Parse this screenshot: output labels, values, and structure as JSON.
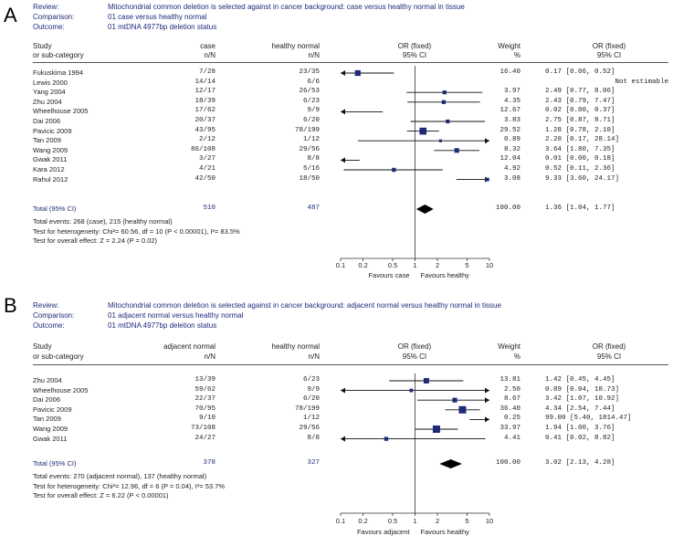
{
  "panels": [
    {
      "label": "A",
      "header": {
        "review_key": "Review:",
        "review": "Mitochondrial common deletion is selected against in cancer background: case versus healthy normal in tissue",
        "comparison_key": "Comparison:",
        "comparison": "01 case versus healthy normal",
        "outcome_key": "Outcome:",
        "outcome": "01 mtDNA 4977bp deletion status"
      },
      "columns": {
        "study1": "Study",
        "study2": "or sub-category",
        "g1a": "case",
        "g1b": "n/N",
        "g2a": "healthy normal",
        "g2b": "n/N",
        "ora": "OR (fixed)",
        "orb": "95% CI",
        "wa": "Weight",
        "wb": "%",
        "cia": "OR (fixed)",
        "cib": "95% CI"
      },
      "studies": [
        {
          "name": "Fukuskima 1994",
          "g1": "7/28",
          "g2": "23/35",
          "weight": "16.40",
          "ci": "0.17 [0.06, 0.52]"
        },
        {
          "name": "Lewis 2000",
          "g1": "14/14",
          "g2": "6/6",
          "weight": "",
          "ci": "Not estimable"
        },
        {
          "name": "Yang 2004",
          "g1": "12/17",
          "g2": "26/53",
          "weight": "3.97",
          "ci": "2.49 [0.77, 8.06]"
        },
        {
          "name": "Zhu 2004",
          "g1": "18/39",
          "g2": "6/23",
          "weight": "4.35",
          "ci": "2.43 [0.79, 7.47]"
        },
        {
          "name": "Wheelhouse 2005",
          "g1": "17/62",
          "g2": "9/9",
          "weight": "12.67",
          "ci": "0.02 [0.00, 0.37]"
        },
        {
          "name": "Dai 2006",
          "g1": "20/37",
          "g2": "6/20",
          "weight": "3.83",
          "ci": "2.75 [0.87, 8.71]"
        },
        {
          "name": "Pavicic 2009",
          "g1": "43/95",
          "g2": "78/199",
          "weight": "29.52",
          "ci": "1.28 [0.78, 2.10]"
        },
        {
          "name": "Tan 2009",
          "g1": "2/12",
          "g2": "1/12",
          "weight": "0.89",
          "ci": "2.20 [0.17, 28.14]"
        },
        {
          "name": "Wang 2009",
          "g1": "86/108",
          "g2": "29/56",
          "weight": "8.32",
          "ci": "3.64 [1.80, 7.35]"
        },
        {
          "name": "Gwak 2011",
          "g1": "3/27",
          "g2": "8/8",
          "weight": "12.04",
          "ci": "0.01 [0.00, 0.18]"
        },
        {
          "name": "Kara 2012",
          "g1": "4/21",
          "g2": "5/16",
          "weight": "4.92",
          "ci": "0.52 [0.11, 2.36]"
        },
        {
          "name": "Rahul 2012",
          "g1": "42/50",
          "g2": "18/50",
          "weight": "3.08",
          "ci": "9.33 [3.60, 24.17]"
        }
      ],
      "total": {
        "label": "Total (95% CI)",
        "g1": "510",
        "g2": "487",
        "weight": "100.00",
        "ci": "1.36 [1.04, 1.77]"
      },
      "footer": [
        "Total events: 268 (case), 215 (healthy normal)",
        "Test for heterogeneity: Chi²= 60.56, df = 10 (P < 0.00001), I²= 83.5%",
        "Test for overall effect: Z = 2.24 (P = 0.02)"
      ],
      "favours_left": "Favours case",
      "favours_right": "Favours healthy"
    },
    {
      "label": "B",
      "header": {
        "review_key": "Review:",
        "review": "Mitochondrial common deletion is selected against in cancer background: adjacent normal versus healthy normal in tissue",
        "comparison_key": "Comparison:",
        "comparison": "01 adjacent normal versus healthy normal",
        "outcome_key": "Outcome:",
        "outcome": "01 mtDNA 4977bp deletion status"
      },
      "columns": {
        "study1": "Study",
        "study2": "or sub-category",
        "g1a": "adjacent normal",
        "g1b": "n/N",
        "g2a": "healthy normal",
        "g2b": "n/N",
        "ora": "OR (fixed)",
        "orb": "95% CI",
        "wa": "Weight",
        "wb": "%",
        "cia": "OR (fixed)",
        "cib": "95% CI"
      },
      "studies": [
        {
          "name": "Zhu 2004",
          "g1": "13/39",
          "g2": "6/23",
          "weight": "13.81",
          "ci": "1.42 [0.45, 4.45]"
        },
        {
          "name": "Wheelhouse 2005",
          "g1": "59/62",
          "g2": "9/9",
          "weight": "2.50",
          "ci": "0.89 [0.04, 18.73]"
        },
        {
          "name": "Dai 2006",
          "g1": "22/37",
          "g2": "6/20",
          "weight": "8.67",
          "ci": "3.42 [1.07, 10.92]"
        },
        {
          "name": "Pavicic 2009",
          "g1": "70/95",
          "g2": "78/199",
          "weight": "36.40",
          "ci": "4.34 [2.54, 7.44]"
        },
        {
          "name": "Tan 2009",
          "g1": "9/10",
          "g2": "1/12",
          "weight": "0.25",
          "ci": "99.00 [5.40, 1814.47]"
        },
        {
          "name": "Wang 2009",
          "g1": "73/108",
          "g2": "29/56",
          "weight": "33.97",
          "ci": "1.94 [1.00, 3.76]"
        },
        {
          "name": "Gwak 2011",
          "g1": "24/27",
          "g2": "8/8",
          "weight": "4.41",
          "ci": "0.41 [0.02, 8.82]"
        }
      ],
      "total": {
        "label": "Total (95% CI)",
        "g1": "378",
        "g2": "327",
        "weight": "100.00",
        "ci": "3.02 [2.13, 4.28]"
      },
      "footer": [
        "Total events: 270 (adjacent normal), 137 (healthy normal)",
        "Test for heterogeneity: Chi²= 12.96, df = 6 (P = 0.04), I²= 53.7%",
        "Test for overall effect: Z = 6.22 (P < 0.00001)"
      ],
      "favours_left": "Favours adjacent",
      "favours_right": "Favours healthy"
    }
  ],
  "chart_data": [
    {
      "type": "scatter",
      "scale": "log",
      "xlim": [
        0.1,
        10
      ],
      "ticks": [
        "0.1",
        "0.2",
        "0.5",
        "1",
        "2",
        "5",
        "10"
      ],
      "colors": {
        "marker": "#1e2a78",
        "diamond": "#000000"
      },
      "points": [
        {
          "name": "Fukuskima 1994",
          "or": 0.17,
          "lo": 0.06,
          "hi": 0.52,
          "weight": 16.4
        },
        {
          "name": "Lewis 2000",
          "or": null,
          "lo": null,
          "hi": null,
          "weight": 0
        },
        {
          "name": "Yang 2004",
          "or": 2.49,
          "lo": 0.77,
          "hi": 8.06,
          "weight": 3.97
        },
        {
          "name": "Zhu 2004",
          "or": 2.43,
          "lo": 0.79,
          "hi": 7.47,
          "weight": 4.35
        },
        {
          "name": "Wheelhouse 2005",
          "or": 0.02,
          "lo": 0.0,
          "hi": 0.37,
          "weight": 12.67
        },
        {
          "name": "Dai 2006",
          "or": 2.75,
          "lo": 0.87,
          "hi": 8.71,
          "weight": 3.83
        },
        {
          "name": "Pavicic 2009",
          "or": 1.28,
          "lo": 0.78,
          "hi": 2.1,
          "weight": 29.52
        },
        {
          "name": "Tan 2009",
          "or": 2.2,
          "lo": 0.17,
          "hi": 28.14,
          "weight": 0.89
        },
        {
          "name": "Wang 2009",
          "or": 3.64,
          "lo": 1.8,
          "hi": 7.35,
          "weight": 8.32
        },
        {
          "name": "Gwak 2011",
          "or": 0.01,
          "lo": 0.0,
          "hi": 0.18,
          "weight": 12.04
        },
        {
          "name": "Kara 2012",
          "or": 0.52,
          "lo": 0.11,
          "hi": 2.36,
          "weight": 4.92
        },
        {
          "name": "Rahul 2012",
          "or": 9.33,
          "lo": 3.6,
          "hi": 24.17,
          "weight": 3.08
        }
      ],
      "pooled": {
        "or": 1.36,
        "lo": 1.04,
        "hi": 1.77
      }
    },
    {
      "type": "scatter",
      "scale": "log",
      "xlim": [
        0.1,
        10
      ],
      "ticks": [
        "0.1",
        "0.2",
        "0.5",
        "1",
        "2",
        "5",
        "10"
      ],
      "colors": {
        "marker": "#1e2a78",
        "diamond": "#000000"
      },
      "points": [
        {
          "name": "Zhu 2004",
          "or": 1.42,
          "lo": 0.45,
          "hi": 4.45,
          "weight": 13.81
        },
        {
          "name": "Wheelhouse 2005",
          "or": 0.89,
          "lo": 0.04,
          "hi": 18.73,
          "weight": 2.5
        },
        {
          "name": "Dai 2006",
          "or": 3.42,
          "lo": 1.07,
          "hi": 10.92,
          "weight": 8.67
        },
        {
          "name": "Pavicic 2009",
          "or": 4.34,
          "lo": 2.54,
          "hi": 7.44,
          "weight": 36.4
        },
        {
          "name": "Tan 2009",
          "or": 99.0,
          "lo": 5.4,
          "hi": 1814.47,
          "weight": 0.25
        },
        {
          "name": "Wang 2009",
          "or": 1.94,
          "lo": 1.0,
          "hi": 3.76,
          "weight": 33.97
        },
        {
          "name": "Gwak 2011",
          "or": 0.41,
          "lo": 0.02,
          "hi": 8.82,
          "weight": 4.41
        }
      ],
      "pooled": {
        "or": 3.02,
        "lo": 2.13,
        "hi": 4.28
      }
    }
  ]
}
